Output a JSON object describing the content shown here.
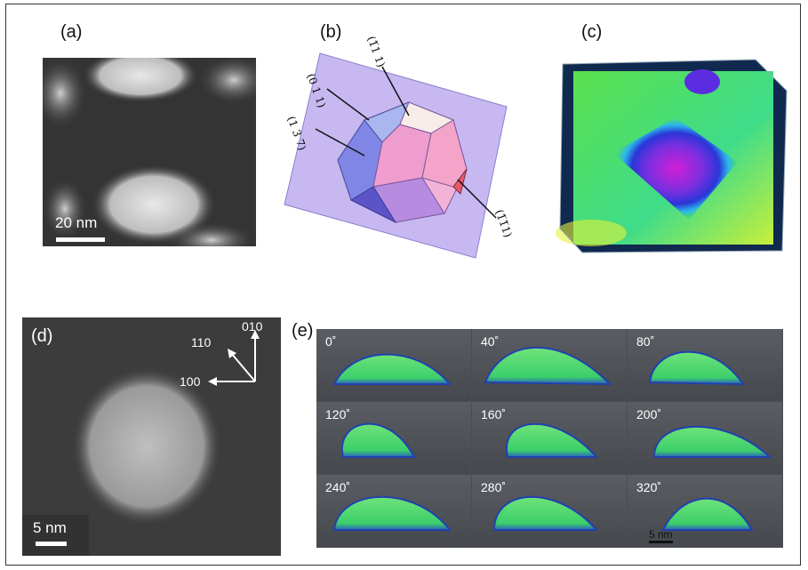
{
  "panels": {
    "a": {
      "label": "(a)",
      "scalebar": "20 nm"
    },
    "b": {
      "label": "(b)",
      "facets": [
        "(0 1 1)",
        "(1 3 7)",
        "(1̅1 1)",
        "(1̅1̅1)"
      ]
    },
    "c": {
      "label": "(c)"
    },
    "d": {
      "label": "(d)",
      "scalebar": "5 nm",
      "directions": [
        "010",
        "110",
        "100"
      ]
    },
    "e": {
      "label": "(e)",
      "angles": [
        "0˚",
        "40˚",
        "80˚",
        "120˚",
        "160˚",
        "200˚",
        "240˚",
        "280˚",
        "320˚"
      ],
      "scalebar": "5 nm"
    }
  },
  "colors": {
    "bg_dark": "#2a2a2a",
    "render_green": "#4fd96a",
    "render_blue": "#1f3ca8",
    "plane_purple": "#b9a6ef"
  }
}
